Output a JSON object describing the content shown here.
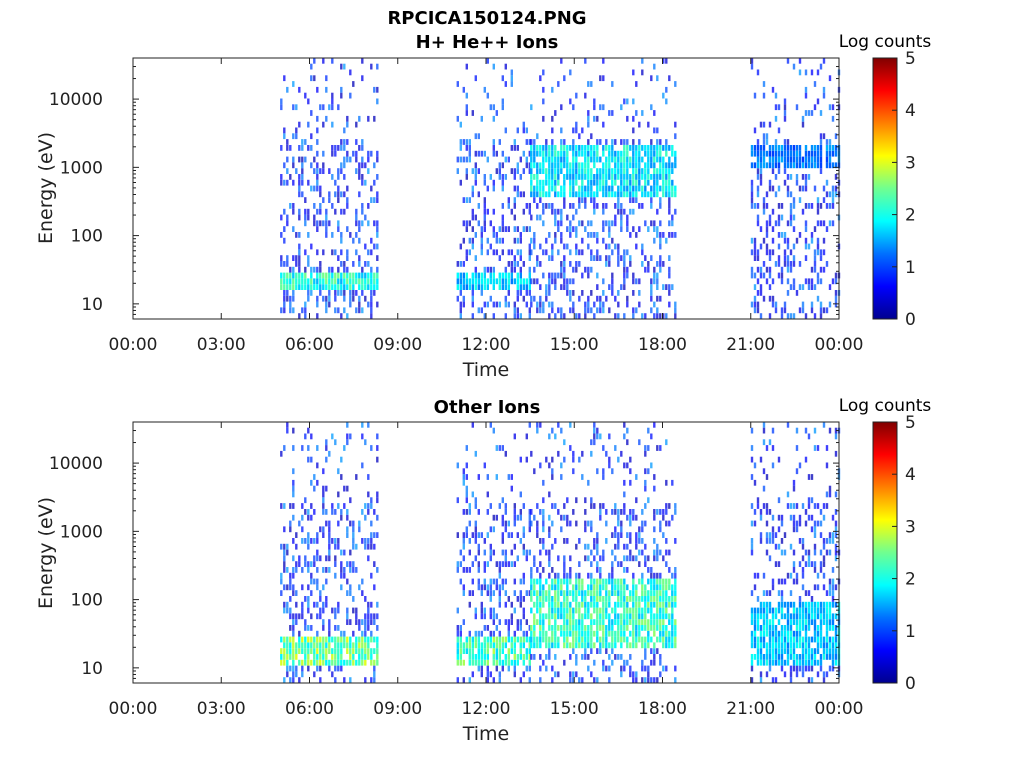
{
  "colors": {
    "background": "#ffffff",
    "axis": "#222222",
    "colormap": [
      "#00008f",
      "#0000ff",
      "#0080ff",
      "#00ffff",
      "#80ff80",
      "#ffff00",
      "#ff8000",
      "#ff0000",
      "#800000"
    ]
  },
  "figure_title": "RPCICA150124.PNG",
  "chart_data": [
    {
      "type": "heatmap",
      "title": "H+ He++ Ions",
      "xlabel": "Time",
      "ylabel": "Energy (eV)",
      "x_ticks": [
        "00:00",
        "03:00",
        "06:00",
        "09:00",
        "12:00",
        "15:00",
        "18:00",
        "21:00",
        "00:00"
      ],
      "xlim": [
        "00:00",
        "24:00"
      ],
      "y_scale": "log",
      "y_ticks": [
        10,
        100,
        1000,
        10000
      ],
      "y_tick_labels": [
        "10",
        "100",
        "1000",
        "10000"
      ],
      "ylim": [
        6,
        40000
      ],
      "colorbar": {
        "label": "Log counts",
        "ticks": [
          "0",
          "1",
          "2",
          "3",
          "4",
          "5"
        ],
        "range": [
          0,
          5
        ]
      },
      "grid": false,
      "data_blocks": [
        {
          "start": "05:00",
          "end": "08:20",
          "dominant_energy_eV": [
            15,
            30
          ],
          "peak_log_counts": 2.5
        },
        {
          "start": "11:00",
          "end": "13:30",
          "dominant_energy_eV": [
            15,
            30
          ],
          "peak_log_counts": 2.0
        },
        {
          "start": "13:30",
          "end": "18:30",
          "dominant_energy_eV": [
            400,
            2000
          ],
          "peak_log_counts": 2.2
        },
        {
          "start": "21:00",
          "end": "24:00",
          "dominant_energy_eV": [
            1000,
            2000
          ],
          "peak_log_counts": 1.5
        }
      ]
    },
    {
      "type": "heatmap",
      "title": "Other Ions",
      "xlabel": "Time",
      "ylabel": "Energy (eV)",
      "x_ticks": [
        "00:00",
        "03:00",
        "06:00",
        "09:00",
        "12:00",
        "15:00",
        "18:00",
        "21:00",
        "00:00"
      ],
      "xlim": [
        "00:00",
        "24:00"
      ],
      "y_scale": "log",
      "y_ticks": [
        10,
        100,
        1000,
        10000
      ],
      "y_tick_labels": [
        "10",
        "100",
        "1000",
        "10000"
      ],
      "ylim": [
        6,
        40000
      ],
      "colorbar": {
        "label": "Log counts",
        "ticks": [
          "0",
          "1",
          "2",
          "3",
          "4",
          "5"
        ],
        "range": [
          0,
          5
        ]
      },
      "grid": false,
      "data_blocks": [
        {
          "start": "05:00",
          "end": "08:20",
          "dominant_energy_eV": [
            10,
            30
          ],
          "peak_log_counts": 3.0
        },
        {
          "start": "11:00",
          "end": "13:30",
          "dominant_energy_eV": [
            10,
            30
          ],
          "peak_log_counts": 2.8
        },
        {
          "start": "13:30",
          "end": "18:30",
          "dominant_energy_eV": [
            20,
            200
          ],
          "peak_log_counts": 2.6
        },
        {
          "start": "21:00",
          "end": "24:00",
          "dominant_energy_eV": [
            10,
            100
          ],
          "peak_log_counts": 2.0
        }
      ]
    }
  ]
}
